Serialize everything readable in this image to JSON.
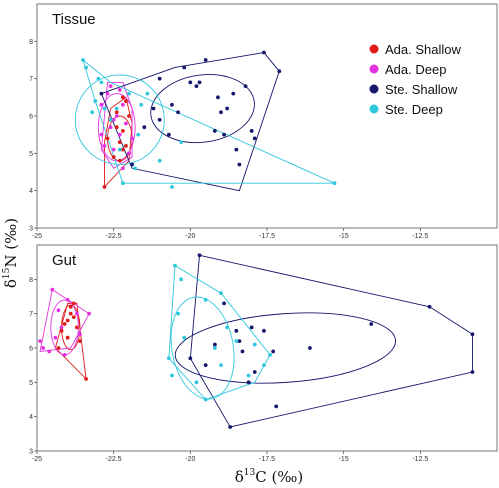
{
  "chart_data": {
    "type": "scatter",
    "xlabel": {
      "main": "δ",
      "sup": "13",
      "rest": "C (‰)"
    },
    "ylabel": {
      "main": "δ",
      "sup": "15",
      "rest": "N (‰)"
    },
    "legend": {
      "placement": "top-right",
      "entries": [
        {
          "name": "Ada. Shallow",
          "color": "#e01a1a"
        },
        {
          "name": "Ada. Deep",
          "color": "#e333e0"
        },
        {
          "name": "Ste. Shallow",
          "color": "#14176b"
        },
        {
          "name": "Ste. Deep",
          "color": "#2fc7dc"
        }
      ]
    },
    "panels": [
      {
        "title": "Tissue",
        "xlim": [
          -25,
          -10
        ],
        "ylim": [
          3,
          9
        ],
        "xticks": [
          "-25",
          "-22.5",
          "-20",
          "-17.5",
          "-15",
          "-12.5"
        ],
        "yticks": [
          "3",
          "4",
          "5",
          "6",
          "7",
          "8"
        ],
        "series": [
          {
            "name": "Ada. Shallow",
            "color": "#e01a1a",
            "points": [
              [
                -22.8,
                4.1
              ],
              [
                -22.3,
                5.3
              ],
              [
                -22.2,
                5.6
              ],
              [
                -22.1,
                5.2
              ],
              [
                -22.4,
                5.7
              ],
              [
                -22.6,
                5.9
              ],
              [
                -22.2,
                6.5
              ],
              [
                -22.1,
                6.4
              ],
              [
                -22.5,
                4.9
              ],
              [
                -22.3,
                4.8
              ],
              [
                -22.0,
                5.0
              ],
              [
                -22.7,
                5.4
              ],
              [
                -22.4,
                6.1
              ],
              [
                -22.0,
                6.0
              ],
              [
                -22.2,
                5.1
              ]
            ],
            "hull": [
              [
                -22.8,
                4.1
              ],
              [
                -22.0,
                4.8
              ],
              [
                -21.9,
                5.8
              ],
              [
                -22.1,
                6.5
              ],
              [
                -22.6,
                6.2
              ],
              [
                -22.8,
                5.3
              ]
            ],
            "ellipse": {
              "cx": -22.3,
              "cy": 5.4,
              "rx": 0.4,
              "ry": 0.6,
              "angle": 0
            }
          },
          {
            "name": "Ada. Deep",
            "color": "#e333e0",
            "points": [
              [
                -22.9,
                6.3
              ],
              [
                -22.7,
                6.6
              ],
              [
                -22.6,
                5.7
              ],
              [
                -22.5,
                5.9
              ],
              [
                -22.8,
                5.2
              ],
              [
                -22.3,
                5.5
              ],
              [
                -22.1,
                5.8
              ],
              [
                -22.0,
                5.0
              ],
              [
                -22.4,
                6.0
              ],
              [
                -22.2,
                6.3
              ],
              [
                -22.6,
                6.8
              ],
              [
                -22.3,
                6.7
              ],
              [
                -22.9,
                5.5
              ],
              [
                -22.2,
                4.6
              ],
              [
                -22.5,
                5.1
              ],
              [
                -21.9,
                5.4
              ]
            ],
            "hull": [
              [
                -22.9,
                5.1
              ],
              [
                -22.7,
                6.9
              ],
              [
                -22.2,
                6.9
              ],
              [
                -21.9,
                6.2
              ],
              [
                -21.9,
                4.9
              ],
              [
                -22.5,
                4.6
              ]
            ],
            "ellipse": {
              "cx": -22.4,
              "cy": 5.7,
              "rx": 0.6,
              "ry": 0.9,
              "angle": 0
            }
          },
          {
            "name": "Ste. Shallow",
            "color": "#14176b",
            "points": [
              [
                -22.9,
                6.6
              ],
              [
                -21.9,
                4.7
              ],
              [
                -21.5,
                5.7
              ],
              [
                -21.0,
                5.9
              ],
              [
                -20.6,
                6.3
              ],
              [
                -20.2,
                7.3
              ],
              [
                -20.0,
                6.9
              ],
              [
                -19.8,
                6.8
              ],
              [
                -19.5,
                7.5
              ],
              [
                -19.2,
                5.6
              ],
              [
                -19.0,
                6.1
              ],
              [
                -18.9,
                5.5
              ],
              [
                -18.8,
                6.2
              ],
              [
                -18.6,
                6.6
              ],
              [
                -18.5,
                5.1
              ],
              [
                -18.4,
                4.7
              ],
              [
                -18.2,
                6.8
              ],
              [
                -18.0,
                5.6
              ],
              [
                -17.9,
                5.4
              ],
              [
                -17.6,
                7.7
              ],
              [
                -17.1,
                7.2
              ],
              [
                -21.2,
                6.2
              ],
              [
                -20.7,
                5.5
              ],
              [
                -20.4,
                6.1
              ],
              [
                -19.7,
                6.9
              ],
              [
                -19.1,
                6.5
              ],
              [
                -21.0,
                7.0
              ]
            ],
            "hull": [
              [
                -22.9,
                6.6
              ],
              [
                -20.5,
                7.3
              ],
              [
                -17.6,
                7.7
              ],
              [
                -17.1,
                7.2
              ],
              [
                -18.4,
                4.0
              ],
              [
                -21.9,
                4.6
              ]
            ],
            "ellipse": {
              "cx": -19.6,
              "cy": 6.2,
              "rx": 1.7,
              "ry": 0.9,
              "angle": -8
            }
          },
          {
            "name": "Ste. Deep",
            "color": "#2fc7dc",
            "points": [
              [
                -23.5,
                7.5
              ],
              [
                -23.4,
                7.3
              ],
              [
                -23.0,
                7.0
              ],
              [
                -23.1,
                6.4
              ],
              [
                -22.8,
                6.2
              ],
              [
                -22.6,
                5.9
              ],
              [
                -22.4,
                6.2
              ],
              [
                -22.0,
                6.6
              ],
              [
                -21.7,
                5.5
              ],
              [
                -21.6,
                6.3
              ],
              [
                -22.2,
                4.2
              ],
              [
                -21.8,
                4.6
              ],
              [
                -22.3,
                5.1
              ],
              [
                -21.0,
                4.8
              ],
              [
                -20.6,
                4.1
              ],
              [
                -20.3,
                5.3
              ],
              [
                -15.3,
                4.2
              ],
              [
                -22.9,
                6.9
              ],
              [
                -21.4,
                6.6
              ],
              [
                -23.2,
                6.1
              ]
            ],
            "hull": [
              [
                -23.5,
                7.5
              ],
              [
                -22.6,
                6.9
              ],
              [
                -15.3,
                4.2
              ],
              [
                -22.2,
                4.2
              ],
              [
                -23.1,
                6.4
              ]
            ],
            "ellipse": {
              "cx": -22.3,
              "cy": 5.9,
              "rx": 1.45,
              "ry": 1.2,
              "angle": -20
            }
          }
        ]
      },
      {
        "title": "Gut",
        "xlim": [
          -25,
          -10
        ],
        "ylim": [
          3,
          9
        ],
        "xticks": [
          "-25",
          "-22.5",
          "-20",
          "-17.5",
          "-15",
          "-12.5"
        ],
        "yticks": [
          "3",
          "4",
          "5",
          "6",
          "7",
          "8"
        ],
        "series": [
          {
            "name": "Ada. Shallow",
            "color": "#e01a1a",
            "points": [
              [
                -23.9,
                7.2
              ],
              [
                -23.8,
                7.3
              ],
              [
                -23.8,
                6.9
              ],
              [
                -24.0,
                6.8
              ],
              [
                -23.7,
                6.6
              ],
              [
                -24.2,
                6.5
              ],
              [
                -23.6,
                6.2
              ],
              [
                -24.0,
                6.3
              ],
              [
                -23.4,
                5.1
              ],
              [
                -24.3,
                6.0
              ],
              [
                -23.9,
                7.0
              ],
              [
                -24.1,
                6.7
              ]
            ],
            "hull": [
              [
                -24.0,
                7.3
              ],
              [
                -23.7,
                7.3
              ],
              [
                -23.4,
                5.1
              ],
              [
                -24.4,
                6.0
              ]
            ],
            "ellipse": {
              "cx": -23.9,
              "cy": 6.6,
              "rx": 0.3,
              "ry": 0.65,
              "angle": 0
            }
          },
          {
            "name": "Ada. Deep",
            "color": "#e333e0",
            "points": [
              [
                -24.5,
                7.7
              ],
              [
                -24.8,
                6.0
              ],
              [
                -24.6,
                5.9
              ],
              [
                -24.4,
                6.3
              ],
              [
                -24.2,
                6.6
              ],
              [
                -24.0,
                7.4
              ],
              [
                -23.7,
                7.0
              ],
              [
                -23.3,
                7.0
              ],
              [
                -23.6,
                6.4
              ],
              [
                -24.1,
                5.8
              ],
              [
                -24.9,
                6.2
              ],
              [
                -24.3,
                7.1
              ]
            ],
            "hull": [
              [
                -24.5,
                7.7
              ],
              [
                -23.3,
                7.0
              ],
              [
                -23.9,
                6.0
              ],
              [
                -24.9,
                5.9
              ]
            ],
            "ellipse": {
              "cx": -24.1,
              "cy": 6.6,
              "rx": 0.45,
              "ry": 0.8,
              "angle": 0
            }
          },
          {
            "name": "Ste. Shallow",
            "color": "#14176b",
            "points": [
              [
                -19.7,
                8.7
              ],
              [
                -20.0,
                5.7
              ],
              [
                -19.2,
                6.1
              ],
              [
                -18.9,
                7.3
              ],
              [
                -18.5,
                6.5
              ],
              [
                -18.4,
                6.2
              ],
              [
                -18.3,
                5.9
              ],
              [
                -18.0,
                6.6
              ],
              [
                -17.6,
                6.5
              ],
              [
                -17.9,
                5.3
              ],
              [
                -17.3,
                5.9
              ],
              [
                -17.2,
                4.3
              ],
              [
                -16.1,
                6.0
              ],
              [
                -14.1,
                6.7
              ],
              [
                -12.2,
                7.2
              ],
              [
                -10.8,
                6.4
              ],
              [
                -10.8,
                5.3
              ],
              [
                -18.7,
                3.7
              ],
              [
                -19.5,
                5.5
              ],
              [
                -18.1,
                5.0
              ]
            ],
            "hull": [
              [
                -19.7,
                8.7
              ],
              [
                -12.2,
                7.2
              ],
              [
                -10.8,
                6.4
              ],
              [
                -10.8,
                5.3
              ],
              [
                -18.7,
                3.7
              ],
              [
                -20.0,
                5.7
              ]
            ],
            "ellipse": {
              "cx": -16.9,
              "cy": 6.0,
              "rx": 3.6,
              "ry": 1.0,
              "angle": -4
            }
          },
          {
            "name": "Ste. Deep",
            "color": "#2fc7dc",
            "points": [
              [
                -20.5,
                8.4
              ],
              [
                -20.3,
                8.0
              ],
              [
                -20.7,
                5.7
              ],
              [
                -20.6,
                5.2
              ],
              [
                -19.5,
                4.5
              ],
              [
                -19.8,
                5.0
              ],
              [
                -19.0,
                5.5
              ],
              [
                -19.2,
                6.0
              ],
              [
                -18.5,
                6.2
              ],
              [
                -17.9,
                6.1
              ],
              [
                -17.4,
                5.8
              ],
              [
                -17.6,
                5.5
              ],
              [
                -18.8,
                6.6
              ],
              [
                -20.2,
                6.3
              ],
              [
                -19.5,
                7.4
              ],
              [
                -19.0,
                7.6
              ],
              [
                -18.1,
                5.2
              ],
              [
                -20.4,
                7.0
              ]
            ],
            "hull": [
              [
                -20.5,
                8.4
              ],
              [
                -19.0,
                7.6
              ],
              [
                -17.4,
                5.8
              ],
              [
                -17.9,
                5.0
              ],
              [
                -19.5,
                4.5
              ],
              [
                -20.7,
                5.7
              ]
            ],
            "ellipse": {
              "cx": -19.6,
              "cy": 6.0,
              "rx": 1.0,
              "ry": 1.5,
              "angle": -10
            }
          }
        ]
      }
    ]
  }
}
